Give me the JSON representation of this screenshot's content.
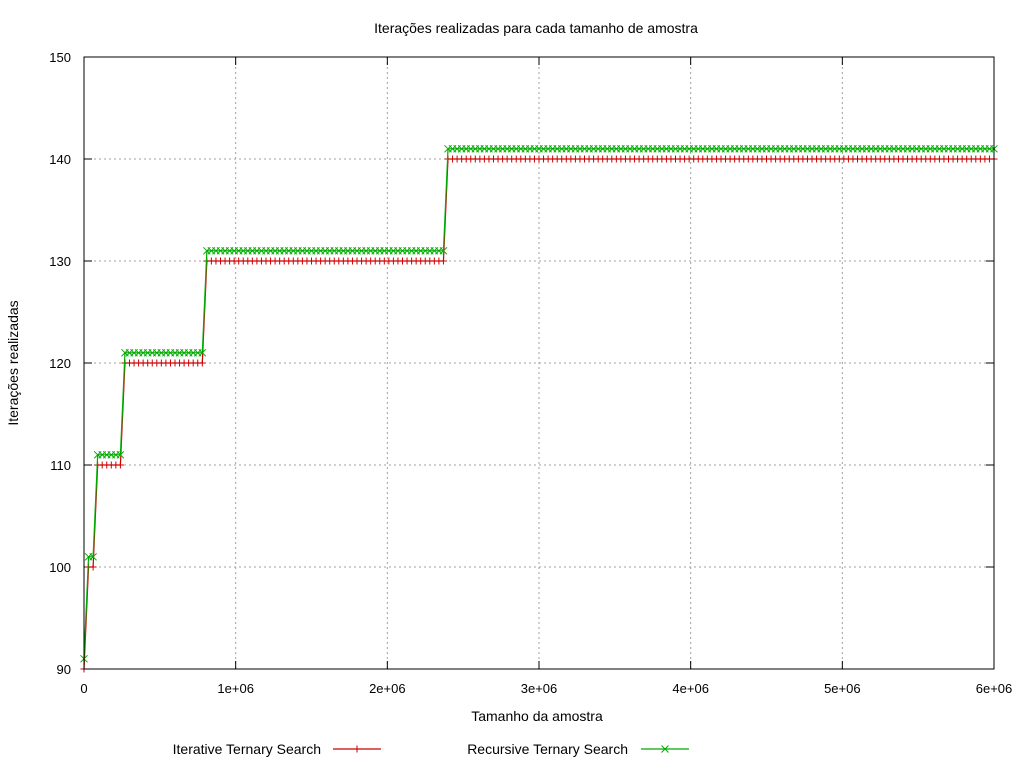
{
  "chart_data": {
    "type": "line",
    "title": "Iterações realizadas para cada tamanho de amostra",
    "xlabel": "Tamanho da amostra",
    "ylabel": "Iterações realizadas",
    "xlim": [
      0,
      6000000
    ],
    "ylim": [
      90,
      150
    ],
    "x_ticks": [
      0,
      1000000,
      2000000,
      3000000,
      4000000,
      5000000,
      6000000
    ],
    "x_tick_labels": [
      "0",
      "1e+06",
      "2e+06",
      "3e+06",
      "4e+06",
      "5e+06",
      "6e+06"
    ],
    "y_ticks": [
      90,
      100,
      110,
      120,
      130,
      140,
      150
    ],
    "y_tick_labels": [
      "90",
      "100",
      "110",
      "120",
      "130",
      "140",
      "150"
    ],
    "grid": true,
    "legend_position": "bottom",
    "sample_step": 30000,
    "series": [
      {
        "name": "Iterative Ternary Search",
        "color": "#cc0000",
        "marker": "plus",
        "steps": [
          {
            "x_from": 0,
            "x_to": 0,
            "y": 90
          },
          {
            "x_from": 30000,
            "x_to": 60000,
            "y": 100
          },
          {
            "x_from": 90000,
            "x_to": 240000,
            "y": 110
          },
          {
            "x_from": 270000,
            "x_to": 780000,
            "y": 120
          },
          {
            "x_from": 810000,
            "x_to": 2370000,
            "y": 130
          },
          {
            "x_from": 2400000,
            "x_to": 6000000,
            "y": 140
          }
        ]
      },
      {
        "name": "Recursive Ternary Search",
        "color": "#00aa00",
        "marker": "cross",
        "steps": [
          {
            "x_from": 0,
            "x_to": 0,
            "y": 91
          },
          {
            "x_from": 30000,
            "x_to": 60000,
            "y": 101
          },
          {
            "x_from": 90000,
            "x_to": 240000,
            "y": 111
          },
          {
            "x_from": 270000,
            "x_to": 780000,
            "y": 121
          },
          {
            "x_from": 810000,
            "x_to": 2370000,
            "y": 131
          },
          {
            "x_from": 2400000,
            "x_to": 6000000,
            "y": 141
          }
        ]
      }
    ]
  }
}
